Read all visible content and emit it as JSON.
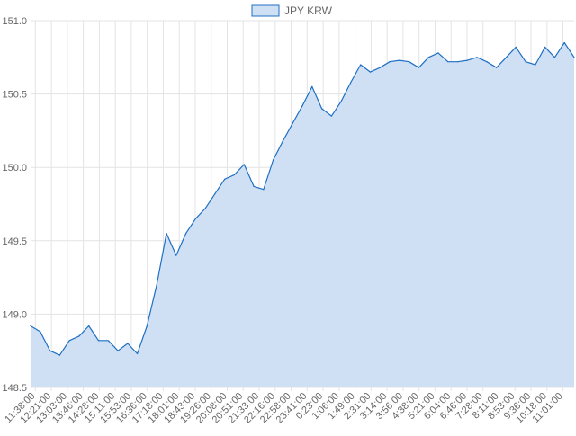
{
  "chart_data": {
    "type": "area",
    "title": "",
    "xlabel": "",
    "ylabel": "",
    "legend": {
      "position": "top",
      "entries": [
        "JPY KRW"
      ]
    },
    "grid": true,
    "ylim": [
      148.5,
      151.0
    ],
    "yticks": [
      "151.0",
      "150.5",
      "150.0",
      "149.5",
      "149.0",
      "148.5"
    ],
    "x_tick_labels": [
      "11:38:00",
      "12:21:00",
      "13:03:00",
      "13:46:00",
      "14:28:00",
      "15:11:00",
      "15:53:00",
      "16:36:00",
      "17:18:00",
      "18:01:00",
      "18:43:00",
      "19:26:00",
      "20:08:00",
      "20:51:00",
      "21:33:00",
      "22:16:00",
      "22:58:00",
      "23:41:00",
      "0:23:00",
      "1:06:00",
      "1:49:00",
      "2:31:00",
      "3:14:00",
      "3:56:00",
      "4:38:00",
      "5:21:00",
      "6:04:00",
      "6:46:00",
      "7:28:00",
      "8:11:00",
      "8:53:00",
      "9:36:00",
      "10:18:00",
      "11:01:00"
    ],
    "colors": {
      "line": "#1f6fc4",
      "fill": "#cfe0f5",
      "grid": "#e3e3e3",
      "text": "#666666"
    },
    "series": [
      {
        "name": "JPY KRW",
        "values": [
          148.92,
          148.88,
          148.75,
          148.72,
          148.82,
          148.85,
          148.92,
          148.82,
          148.82,
          148.75,
          148.8,
          148.73,
          148.92,
          149.2,
          149.55,
          149.4,
          149.55,
          149.65,
          149.72,
          149.82,
          149.92,
          149.95,
          150.02,
          149.87,
          149.85,
          150.05,
          150.18,
          150.3,
          150.42,
          150.55,
          150.4,
          150.35,
          150.45,
          150.58,
          150.7,
          150.65,
          150.68,
          150.72,
          150.73,
          150.72,
          150.68,
          150.75,
          150.78,
          150.72,
          150.72,
          150.73,
          150.75,
          150.72,
          150.68,
          150.75,
          150.82,
          150.72,
          150.7,
          150.82,
          150.75,
          150.85,
          150.75
        ]
      }
    ]
  }
}
